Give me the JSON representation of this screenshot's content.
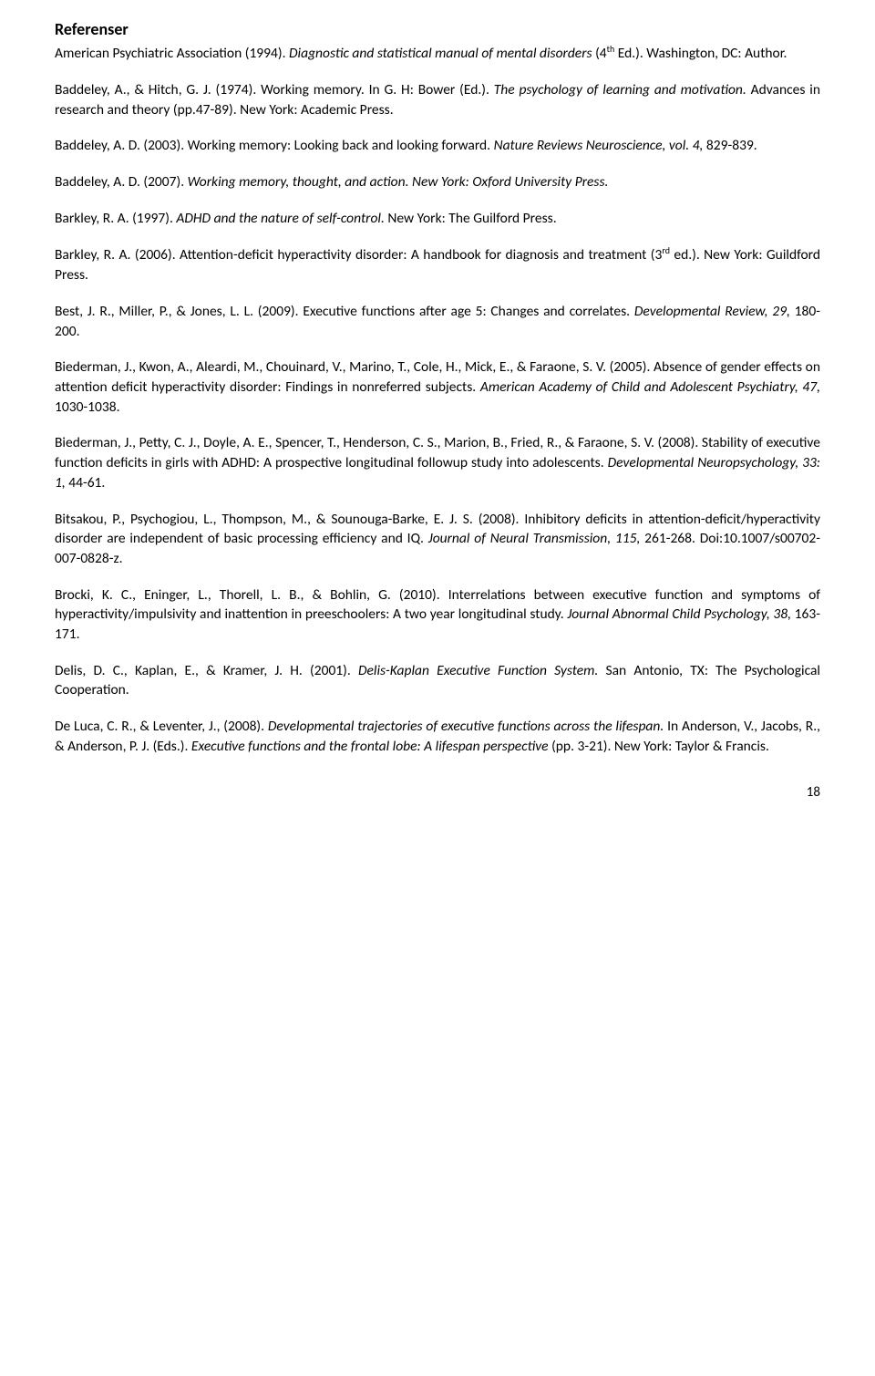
{
  "heading": "Referenser",
  "references": [
    {
      "parts": [
        {
          "text": "American Psychiatric Association (1994). ",
          "italic": false
        },
        {
          "text": "Diagnostic and statistical manual of mental disorders ",
          "italic": true
        },
        {
          "text": "(4",
          "italic": false
        },
        {
          "text": "th",
          "italic": false,
          "sup": true
        },
        {
          "text": " Ed.). Washington, DC: Author.",
          "italic": false
        }
      ]
    },
    {
      "parts": [
        {
          "text": "Baddeley, A., & Hitch, G. J. (1974). Working memory. In G. H: Bower (Ed.). ",
          "italic": false
        },
        {
          "text": "The psychology of learning and motivation. ",
          "italic": true
        },
        {
          "text": "Advances in research and theory (pp.47-89). New York: Academic Press.",
          "italic": false
        }
      ]
    },
    {
      "parts": [
        {
          "text": "Baddeley, A. D. (2003). Working memory: Looking back and looking forward. ",
          "italic": false
        },
        {
          "text": "Nature Reviews Neuroscience, vol. 4, ",
          "italic": true
        },
        {
          "text": "829-839.",
          "italic": false
        }
      ]
    },
    {
      "parts": [
        {
          "text": "Baddeley, A. D. (2007). ",
          "italic": false
        },
        {
          "text": "Working memory, thought, and action. New York: Oxford University Press.",
          "italic": true
        }
      ]
    },
    {
      "parts": [
        {
          "text": "Barkley, R. A. (1997). ",
          "italic": false
        },
        {
          "text": "ADHD and the nature of self-control. ",
          "italic": true
        },
        {
          "text": "New York: The Guilford Press.",
          "italic": false
        }
      ]
    },
    {
      "parts": [
        {
          "text": "Barkley, R. A. (2006). Attention-deficit hyperactivity disorder: A handbook for diagnosis and treatment (3",
          "italic": false
        },
        {
          "text": "rd",
          "italic": false,
          "sup": true
        },
        {
          "text": " ed.). New York: Guildford Press.",
          "italic": false
        }
      ]
    },
    {
      "parts": [
        {
          "text": "Best, J. R., Miller, P., & Jones, L. L. (2009). Executive functions after age 5: Changes and correlates. ",
          "italic": false
        },
        {
          "text": "Developmental Review, 29, ",
          "italic": true
        },
        {
          "text": "180-200.",
          "italic": false
        }
      ]
    },
    {
      "parts": [
        {
          "text": "Biederman, J., Kwon, A., Aleardi, M., Chouinard, V., Marino, T., Cole, H., Mick, E., & Faraone, S. V. (2005). Absence of gender effects on attention deficit hyperactivity disorder: Findings in nonreferred subjects. ",
          "italic": false
        },
        {
          "text": "American Academy of Child and Adolescent Psychiatry, 47, ",
          "italic": true
        },
        {
          "text": "1030-1038.",
          "italic": false
        }
      ]
    },
    {
      "parts": [
        {
          "text": "Biederman, J., Petty, C. J., Doyle, A. E., Spencer, T., Henderson, C. S., Marion, B., Fried, R., & Faraone, S. V. (2008). Stability of executive function deficits in girls with ADHD: A prospective longitudinal followup study into adolescents. ",
          "italic": false
        },
        {
          "text": "Developmental Neuropsychology, 33: 1, ",
          "italic": true
        },
        {
          "text": "44-61.",
          "italic": false
        }
      ]
    },
    {
      "parts": [
        {
          "text": "Bitsakou, P., Psychogiou, L., Thompson, M., & Sounouga-Barke, E. J. S. (2008). Inhibitory deficits in attention-deficit/hyperactivity disorder are independent of basic processing efficiency and IQ. ",
          "italic": false
        },
        {
          "text": "Journal of Neural Transmission, 115, ",
          "italic": true
        },
        {
          "text": "261-268. Doi:10.1007/s00702-007-0828-z.",
          "italic": false
        }
      ]
    },
    {
      "parts": [
        {
          "text": "Brocki, K. C., Eninger, L., Thorell, L. B., & Bohlin, G. (2010). Interrelations between executive function and symptoms of hyperactivity/impulsivity and inattention in preeschoolers: A two year longitudinal study. ",
          "italic": false
        },
        {
          "text": "Journal Abnormal Child Psychology, 38, ",
          "italic": true
        },
        {
          "text": "163-171.",
          "italic": false
        }
      ]
    },
    {
      "parts": [
        {
          "text": "Delis, D. C., Kaplan, E., & Kramer, J. H. (2001). ",
          "italic": false
        },
        {
          "text": "Delis-Kaplan Executive Function System. ",
          "italic": true
        },
        {
          "text": "San Antonio, TX: The Psychological Cooperation.",
          "italic": false
        }
      ]
    },
    {
      "parts": [
        {
          "text": "De Luca, C. R., & Leventer, J., (2008). ",
          "italic": false
        },
        {
          "text": "Developmental trajectories of executive functions across the lifespan. ",
          "italic": true
        },
        {
          "text": "In Anderson, V., Jacobs, R., & Anderson, P. J. (Eds.). ",
          "italic": false
        },
        {
          "text": "Executive functions and the frontal lobe: A lifespan perspective ",
          "italic": true
        },
        {
          "text": "(pp. 3-21). New York: Taylor & Francis.",
          "italic": false
        }
      ]
    }
  ],
  "pageNumber": "18"
}
